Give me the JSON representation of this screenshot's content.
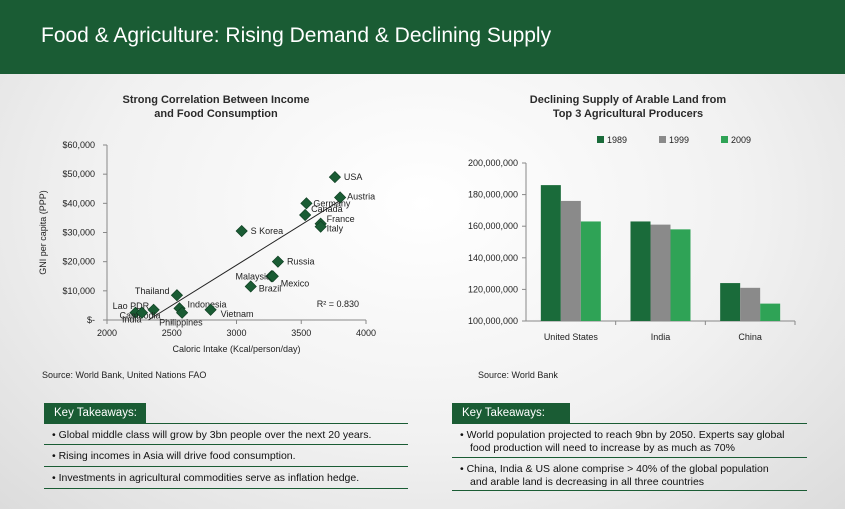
{
  "header": {
    "title": "Food & Agriculture: Rising Demand & Declining Supply"
  },
  "colors": {
    "brand_green": "#1a5c34",
    "series_1989": "#1a6b3a",
    "series_1999": "#8a8a8a",
    "series_2009": "#2fa356"
  },
  "left_chart": {
    "title_line1": "Strong Correlation Between Income",
    "title_line2": "and Food Consumption",
    "source": "Source: World Bank, United Nations FAO"
  },
  "right_chart": {
    "title_line1": "Declining Supply of Arable Land from",
    "title_line2": "Top 3 Agricultural Producers",
    "source": "Source: World Bank"
  },
  "left_takeaways": {
    "heading": "Key Takeaways:",
    "items": [
      "• Global middle class will grow by 3bn people over the next 20 years.",
      "• Rising incomes in Asia will drive food consumption.",
      "• Investments in agricultural commodities serve as inflation hedge."
    ]
  },
  "right_takeaways": {
    "heading": "Key Takeaways:",
    "items": [
      {
        "line1": "• World population projected to reach 9bn by 2050. Experts say global",
        "line2": "food production will need to increase by as much as 70%"
      },
      {
        "line1": "• China, India & US alone comprise > 40% of the global population",
        "line2": "and arable land is decreasing in all three countries"
      }
    ]
  },
  "chart_data": [
    {
      "type": "scatter",
      "title": "Strong Correlation Between Income and Food Consumption",
      "xlabel": "Caloric Intake (Kcal/person/day)",
      "ylabel": "GNI per capita (PPP)",
      "xlim": [
        2000,
        4000
      ],
      "ylim": [
        0,
        60000
      ],
      "x_ticks": [
        "2000",
        "2500",
        "3000",
        "3500",
        "4000"
      ],
      "y_ticks": [
        "$-",
        "$10,000",
        "$20,000",
        "$30,000",
        "$40,000",
        "$50,000",
        "$60,000"
      ],
      "annotation": "R² = 0.830",
      "trendline": {
        "x": [
          2320,
          3820
        ],
        "y": [
          0,
          41500
        ]
      },
      "points": [
        {
          "label": "USA",
          "x": 3760,
          "y": 49000
        },
        {
          "label": "Austria",
          "x": 3800,
          "y": 42000
        },
        {
          "label": "Germany",
          "x": 3540,
          "y": 40000
        },
        {
          "label": "Canada",
          "x": 3530,
          "y": 36000
        },
        {
          "label": "France",
          "x": 3650,
          "y": 33000
        },
        {
          "label": "Italy",
          "x": 3650,
          "y": 32000
        },
        {
          "label": "S Korea",
          "x": 3040,
          "y": 30500
        },
        {
          "label": "Russia",
          "x": 3320,
          "y": 20000
        },
        {
          "label": "Malaysia",
          "x": 3270,
          "y": 15000
        },
        {
          "label": "Mexico",
          "x": 3280,
          "y": 15000
        },
        {
          "label": "Brazil",
          "x": 3110,
          "y": 11500
        },
        {
          "label": "Thailand",
          "x": 2540,
          "y": 8500
        },
        {
          "label": "Indonesia",
          "x": 2560,
          "y": 4000
        },
        {
          "label": "Vietnam",
          "x": 2800,
          "y": 3500
        },
        {
          "label": "Lao PDR",
          "x": 2360,
          "y": 3500
        },
        {
          "label": "Cambodia",
          "x": 2220,
          "y": 2500
        },
        {
          "label": "India",
          "x": 2270,
          "y": 2500
        },
        {
          "label": "Philippines",
          "x": 2580,
          "y": 2500
        }
      ]
    },
    {
      "type": "bar",
      "title": "Declining Supply of Arable Land from Top 3 Agricultural Producers",
      "categories": [
        "United States",
        "India",
        "China"
      ],
      "ylim": [
        100000000,
        200000000
      ],
      "y_ticks": [
        "100,000,000",
        "120,000,000",
        "140,000,000",
        "160,000,000",
        "180,000,000",
        "200,000,000"
      ],
      "legend_position": "top",
      "series": [
        {
          "name": "1989",
          "values": [
            186000000,
            163000000,
            124000000
          ]
        },
        {
          "name": "1999",
          "values": [
            176000000,
            161000000,
            121000000
          ]
        },
        {
          "name": "2009",
          "values": [
            163000000,
            158000000,
            111000000
          ]
        }
      ]
    }
  ]
}
